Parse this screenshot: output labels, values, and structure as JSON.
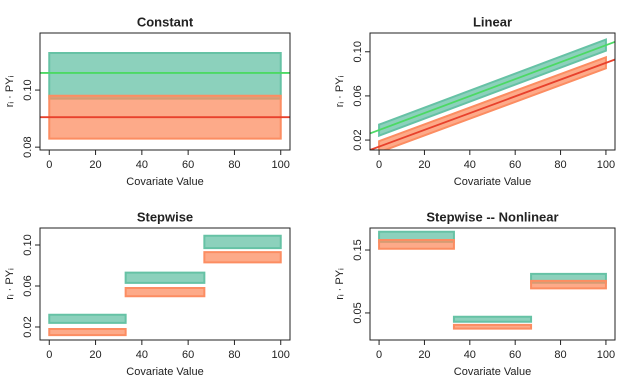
{
  "chart_data": [
    {
      "type": "band",
      "title": "Constant",
      "xlabel": "Covariate Value",
      "ylabel": "rᵢ · PYᵢ",
      "xlim": [
        -4,
        104
      ],
      "xticks": [
        0,
        20,
        40,
        60,
        80,
        100
      ],
      "ylim": [
        0.079,
        0.12
      ],
      "yticks": [
        {
          "value": 0.08,
          "label": "0.08"
        },
        {
          "value": 0.1,
          "label": "0.10"
        }
      ],
      "series": [
        {
          "color": "#66c2a5",
          "x": [
            0,
            100
          ],
          "values": [
            0.105,
            0.105
          ],
          "spread": 0.008
        },
        {
          "color": "#fc8d62",
          "x": [
            0,
            100
          ],
          "values": [
            0.0905,
            0.0905
          ],
          "spread": 0.0075
        }
      ],
      "fit_lines": [
        {
          "color": "#4cd964",
          "x": [
            -4,
            104
          ],
          "values": [
            0.106,
            0.106
          ]
        },
        {
          "color": "#e8412c",
          "x": [
            -4,
            104
          ],
          "values": [
            0.0905,
            0.0905
          ]
        }
      ]
    },
    {
      "type": "band",
      "title": "Linear",
      "xlabel": "Covariate Value",
      "ylabel": "rᵢ · PYᵢ",
      "xlim": [
        -4,
        104
      ],
      "xticks": [
        0,
        20,
        40,
        60,
        80,
        100
      ],
      "ylim": [
        0.011,
        0.117
      ],
      "yticks": [
        {
          "value": 0.02,
          "label": "0.02"
        },
        {
          "value": 0.06,
          "label": "0.06"
        },
        {
          "value": 0.1,
          "label": "0.10"
        }
      ],
      "series": [
        {
          "color": "#66c2a5",
          "x": [
            0,
            100
          ],
          "values": [
            0.029,
            0.106
          ],
          "spread": 0.005
        },
        {
          "color": "#fc8d62",
          "x": [
            0,
            100
          ],
          "values": [
            0.014,
            0.09
          ],
          "spread": 0.005
        }
      ],
      "fit_lines": [
        {
          "color": "#4cd964",
          "x": [
            -4,
            104
          ],
          "values": [
            0.026,
            0.109
          ]
        },
        {
          "color": "#e8412c",
          "x": [
            -4,
            104
          ],
          "values": [
            0.011,
            0.093
          ]
        }
      ]
    },
    {
      "type": "band",
      "title": "Stepwise",
      "xlabel": "Covariate Value",
      "ylabel": "rᵢ · PYᵢ",
      "xlim": [
        -4,
        104
      ],
      "xticks": [
        0,
        20,
        40,
        60,
        80,
        100
      ],
      "ylim": [
        0.0073,
        0.1166
      ],
      "yticks": [
        {
          "value": 0.02,
          "label": "0.02"
        },
        {
          "value": 0.06,
          "label": "0.06"
        },
        {
          "value": 0.1,
          "label": "0.10"
        }
      ],
      "series": [
        {
          "color": "#66c2a5",
          "x": [
            0,
            33
          ],
          "values": [
            0.028,
            0.028
          ],
          "spread": 0.004
        },
        {
          "color": "#fc8d62",
          "x": [
            0,
            33
          ],
          "values": [
            0.015,
            0.015
          ],
          "spread": 0.003
        },
        {
          "color": "#66c2a5",
          "x": [
            33,
            67
          ],
          "values": [
            0.068,
            0.068
          ],
          "spread": 0.005
        },
        {
          "color": "#fc8d62",
          "x": [
            33,
            67
          ],
          "values": [
            0.054,
            0.054
          ],
          "spread": 0.004
        },
        {
          "color": "#66c2a5",
          "x": [
            67,
            100
          ],
          "values": [
            0.103,
            0.103
          ],
          "spread": 0.006
        },
        {
          "color": "#fc8d62",
          "x": [
            67,
            100
          ],
          "values": [
            0.088,
            0.088
          ],
          "spread": 0.005
        }
      ]
    },
    {
      "type": "band",
      "title": "Stepwise -- Nonlinear",
      "xlabel": "Covariate Value",
      "ylabel": "rᵢ · PYᵢ",
      "xlim": [
        -4,
        104
      ],
      "xticks": [
        0,
        20,
        40,
        60,
        80,
        100
      ],
      "ylim": [
        0.007,
        0.185
      ],
      "yticks": [
        {
          "value": 0.05,
          "label": "0.05"
        },
        {
          "value": 0.15,
          "label": "0.15"
        }
      ],
      "series": [
        {
          "color": "#66c2a5",
          "x": [
            0,
            33
          ],
          "values": [
            0.171,
            0.171
          ],
          "spread": 0.008
        },
        {
          "color": "#fc8d62",
          "x": [
            0,
            33
          ],
          "values": [
            0.159,
            0.159
          ],
          "spread": 0.007
        },
        {
          "color": "#66c2a5",
          "x": [
            33,
            67
          ],
          "values": [
            0.04,
            0.04
          ],
          "spread": 0.004
        },
        {
          "color": "#fc8d62",
          "x": [
            33,
            67
          ],
          "values": [
            0.028,
            0.028
          ],
          "spread": 0.003
        },
        {
          "color": "#66c2a5",
          "x": [
            67,
            100
          ],
          "values": [
            0.105,
            0.105
          ],
          "spread": 0.007
        },
        {
          "color": "#fc8d62",
          "x": [
            67,
            100
          ],
          "values": [
            0.095,
            0.095
          ],
          "spread": 0.006
        }
      ]
    }
  ]
}
